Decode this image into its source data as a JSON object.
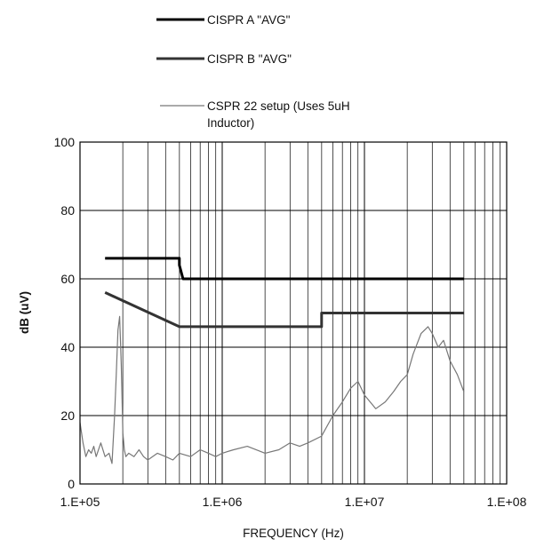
{
  "chart_data": {
    "type": "line",
    "xlabel": "FREQUENCY (Hz)",
    "ylabel": "dB (uV)",
    "x_scale": "log",
    "xlim": [
      100000,
      100000000
    ],
    "ylim": [
      0,
      100
    ],
    "x_ticks": [
      {
        "value": 100000,
        "label": "1.E+05"
      },
      {
        "value": 1000000,
        "label": "1.E+06"
      },
      {
        "value": 10000000,
        "label": "1.E+07"
      },
      {
        "value": 100000000,
        "label": "1.E+08"
      }
    ],
    "y_ticks": [
      {
        "value": 0,
        "label": "0"
      },
      {
        "value": 20,
        "label": "20"
      },
      {
        "value": 40,
        "label": "40"
      },
      {
        "value": 60,
        "label": "60"
      },
      {
        "value": 80,
        "label": "80"
      },
      {
        "value": 100,
        "label": "100"
      }
    ],
    "grid": "on (log minor gridlines on x)",
    "legend_position": "top",
    "series": [
      {
        "name": "CISPR A \"AVG\"",
        "color": "#000000",
        "x": [
          150000,
          500000,
          500000,
          530000,
          50000000
        ],
        "y": [
          66,
          66,
          64,
          60,
          60
        ]
      },
      {
        "name": "CISPR B \"AVG\"",
        "color": "#333333",
        "x": [
          150000,
          500000,
          5000000,
          5000000,
          50000000
        ],
        "y": [
          56,
          46,
          46,
          50,
          50
        ]
      },
      {
        "name": "CSPR 22 setup (Uses 5uH Inductor)",
        "color": "#777777",
        "x": [
          100000,
          105000,
          110000,
          115000,
          120000,
          125000,
          130000,
          140000,
          150000,
          160000,
          168000,
          175000,
          180000,
          185000,
          190000,
          195000,
          200000,
          205000,
          210000,
          220000,
          240000,
          260000,
          280000,
          300000,
          350000,
          400000,
          450000,
          500000,
          600000,
          700000,
          800000,
          900000,
          1000000,
          1200000,
          1500000,
          2000000,
          2500000,
          3000000,
          3500000,
          4000000,
          5000000,
          6000000,
          7000000,
          8000000,
          9000000,
          10000000,
          12000000,
          14000000,
          16000000,
          18000000,
          20000000,
          22000000,
          25000000,
          28000000,
          30000000,
          33000000,
          36000000,
          40000000,
          45000000,
          50000000
        ],
        "y": [
          18,
          12,
          8,
          10,
          9,
          11,
          8,
          12,
          8,
          9,
          6,
          20,
          32,
          45,
          49,
          35,
          15,
          10,
          8,
          9,
          8,
          10,
          8,
          7,
          9,
          8,
          7,
          9,
          8,
          10,
          9,
          8,
          9,
          10,
          11,
          9,
          10,
          12,
          11,
          12,
          14,
          20,
          24,
          28,
          30,
          26,
          22,
          24,
          27,
          30,
          32,
          38,
          44,
          46,
          44,
          40,
          42,
          36,
          32,
          27
        ]
      }
    ]
  }
}
